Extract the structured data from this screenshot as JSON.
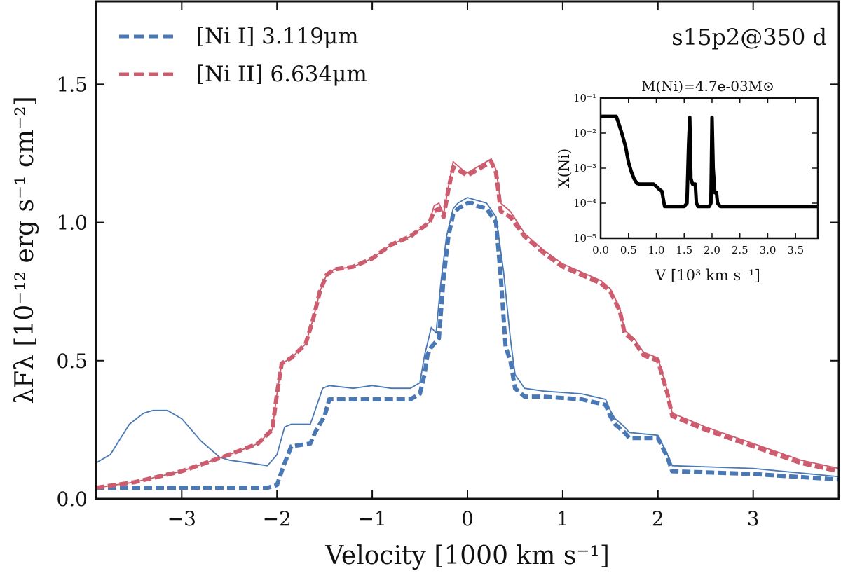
{
  "chart_data": [
    {
      "type": "line",
      "panel_label": "s15p2@350 d",
      "xlabel": "Velocity [1000 km s⁻¹]",
      "ylabel": "λFλ [10⁻¹² erg s⁻¹ cm⁻²]",
      "xlim": [
        -3.9,
        3.9
      ],
      "ylim": [
        0.0,
        1.8
      ],
      "xticks": [
        -3,
        -2,
        -1,
        0,
        1,
        2,
        3
      ],
      "xtick_labels": [
        "−3",
        "−2",
        "−1",
        "0",
        "1",
        "2",
        "3"
      ],
      "yticks": [
        0.0,
        0.5,
        1.0,
        1.5
      ],
      "ytick_labels": [
        "0.0",
        "0.5",
        "1.0",
        "1.5"
      ],
      "legend": [
        {
          "label": "[Ni I] 3.119μm",
          "color": "#4a78b4",
          "style": "dashed"
        },
        {
          "label": "[Ni II] 6.634μm",
          "color": "#cc5c6e",
          "style": "dashed"
        }
      ],
      "series": [
        {
          "name": "[Ni I] 3.119μm (dashed)",
          "color": "#4a78b4",
          "style": "dashed",
          "x": [
            -3.9,
            -2.1,
            -2.0,
            -1.93,
            -1.85,
            -1.65,
            -1.6,
            -1.5,
            -1.45,
            -1.0,
            -0.6,
            -0.5,
            -0.45,
            -0.42,
            -0.38,
            -0.3,
            -0.25,
            -0.2,
            -0.15,
            -0.1,
            -0.05,
            0.0,
            0.05,
            0.1,
            0.2,
            0.3,
            0.35,
            0.4,
            0.45,
            0.5,
            0.6,
            0.8,
            1.2,
            1.45,
            1.5,
            1.55,
            1.65,
            1.7,
            2.0,
            2.1,
            2.15,
            3.0,
            3.9
          ],
          "y": [
            0.04,
            0.04,
            0.05,
            0.12,
            0.19,
            0.2,
            0.24,
            0.3,
            0.36,
            0.36,
            0.36,
            0.38,
            0.45,
            0.52,
            0.55,
            0.58,
            0.8,
            0.95,
            1.03,
            1.05,
            1.06,
            1.07,
            1.07,
            1.06,
            1.05,
            1.0,
            0.8,
            0.55,
            0.5,
            0.4,
            0.37,
            0.37,
            0.36,
            0.34,
            0.3,
            0.27,
            0.24,
            0.22,
            0.22,
            0.15,
            0.1,
            0.09,
            0.07
          ]
        },
        {
          "name": "[Ni I] 3.119μm (solid)",
          "color": "#4a78b4",
          "style": "solid",
          "x": [
            -3.9,
            -3.75,
            -3.55,
            -3.4,
            -3.3,
            -3.15,
            -3.0,
            -2.8,
            -2.6,
            -2.5,
            -2.3,
            -2.1,
            -2.0,
            -1.92,
            -1.85,
            -1.65,
            -1.6,
            -1.52,
            -1.45,
            -1.2,
            -1.0,
            -0.8,
            -0.6,
            -0.5,
            -0.45,
            -0.38,
            -0.33,
            -0.28,
            -0.22,
            -0.15,
            -0.1,
            -0.05,
            0.0,
            0.1,
            0.2,
            0.3,
            0.38,
            0.45,
            0.5,
            0.6,
            0.8,
            1.2,
            1.45,
            1.5,
            1.55,
            1.65,
            1.7,
            2.0,
            2.1,
            2.15,
            3.0,
            3.9
          ],
          "y": [
            0.13,
            0.16,
            0.27,
            0.31,
            0.32,
            0.32,
            0.29,
            0.21,
            0.15,
            0.14,
            0.13,
            0.12,
            0.16,
            0.26,
            0.27,
            0.27,
            0.32,
            0.4,
            0.41,
            0.4,
            0.41,
            0.4,
            0.4,
            0.42,
            0.52,
            0.62,
            0.6,
            0.78,
            0.95,
            1.05,
            1.07,
            1.08,
            1.09,
            1.08,
            1.07,
            1.02,
            0.82,
            0.58,
            0.45,
            0.4,
            0.39,
            0.38,
            0.36,
            0.32,
            0.29,
            0.26,
            0.24,
            0.23,
            0.16,
            0.12,
            0.11,
            0.08
          ]
        },
        {
          "name": "[Ni II] 6.634μm (dashed)",
          "color": "#cc5c6e",
          "style": "dashed",
          "x": [
            -3.9,
            -3.5,
            -3.0,
            -2.5,
            -2.2,
            -2.05,
            -2.0,
            -1.95,
            -1.85,
            -1.7,
            -1.62,
            -1.55,
            -1.48,
            -1.4,
            -1.2,
            -1.0,
            -0.8,
            -0.6,
            -0.4,
            -0.35,
            -0.3,
            -0.25,
            -0.2,
            -0.15,
            -0.05,
            0.0,
            0.05,
            0.15,
            0.25,
            0.3,
            0.35,
            0.45,
            0.6,
            0.8,
            1.0,
            1.2,
            1.4,
            1.5,
            1.6,
            1.65,
            1.75,
            1.85,
            2.0,
            2.1,
            2.15,
            2.5,
            3.0,
            3.5,
            3.9
          ],
          "y": [
            0.04,
            0.06,
            0.1,
            0.16,
            0.2,
            0.25,
            0.38,
            0.49,
            0.51,
            0.56,
            0.65,
            0.75,
            0.81,
            0.83,
            0.84,
            0.87,
            0.92,
            0.95,
            1.0,
            1.04,
            1.05,
            1.02,
            1.12,
            1.2,
            1.18,
            1.17,
            1.18,
            1.2,
            1.22,
            1.18,
            1.04,
            1.02,
            0.95,
            0.89,
            0.84,
            0.81,
            0.78,
            0.75,
            0.68,
            0.6,
            0.57,
            0.52,
            0.5,
            0.38,
            0.3,
            0.25,
            0.19,
            0.13,
            0.1
          ]
        },
        {
          "name": "[Ni II] 6.634μm (solid)",
          "color": "#cc5c6e",
          "style": "solid",
          "x": [
            -3.9,
            -3.5,
            -3.0,
            -2.5,
            -2.2,
            -2.05,
            -2.0,
            -1.95,
            -1.85,
            -1.7,
            -1.62,
            -1.55,
            -1.48,
            -1.4,
            -1.2,
            -1.0,
            -0.8,
            -0.6,
            -0.4,
            -0.35,
            -0.3,
            -0.25,
            -0.2,
            -0.15,
            -0.05,
            0.0,
            0.05,
            0.15,
            0.25,
            0.3,
            0.35,
            0.45,
            0.6,
            0.8,
            1.0,
            1.2,
            1.4,
            1.5,
            1.6,
            1.65,
            1.75,
            1.85,
            2.0,
            2.1,
            2.15,
            2.5,
            3.0,
            3.5,
            3.9
          ],
          "y": [
            0.04,
            0.06,
            0.1,
            0.16,
            0.2,
            0.25,
            0.38,
            0.49,
            0.51,
            0.56,
            0.65,
            0.75,
            0.81,
            0.83,
            0.84,
            0.87,
            0.92,
            0.95,
            1.0,
            1.06,
            1.07,
            1.03,
            1.13,
            1.22,
            1.19,
            1.18,
            1.19,
            1.21,
            1.23,
            1.19,
            1.07,
            1.04,
            0.96,
            0.9,
            0.85,
            0.82,
            0.79,
            0.76,
            0.69,
            0.61,
            0.58,
            0.53,
            0.51,
            0.39,
            0.31,
            0.26,
            0.2,
            0.14,
            0.11
          ]
        }
      ]
    },
    {
      "type": "line",
      "title": "M(Ni)=4.7e-03M⊙",
      "xlabel": "V [10³ km s⁻¹]",
      "ylabel": "X(Ni)",
      "xlim": [
        0.0,
        3.9
      ],
      "ylim": [
        1e-05,
        0.1
      ],
      "yscale": "log",
      "xticks": [
        0.0,
        0.5,
        1.0,
        1.5,
        2.0,
        2.5,
        3.0,
        3.5
      ],
      "xtick_labels": [
        "0.0",
        "0.5",
        "1.0",
        "1.5",
        "2.0",
        "2.5",
        "3.0",
        "3.5"
      ],
      "yticks": [
        1e-05,
        0.0001,
        0.001,
        0.01,
        0.1
      ],
      "ytick_labels": [
        "10⁻⁵",
        "10⁻⁴",
        "10⁻³",
        "10⁻²",
        "10⁻¹"
      ],
      "series": [
        {
          "name": "X(Ni)",
          "color": "#000000",
          "style": "solid",
          "x": [
            0.0,
            0.28,
            0.32,
            0.38,
            0.45,
            0.5,
            0.55,
            0.6,
            0.65,
            0.7,
            0.95,
            1.0,
            1.05,
            1.1,
            1.15,
            1.5,
            1.55,
            1.58,
            1.6,
            1.62,
            1.65,
            1.7,
            1.72,
            1.75,
            1.95,
            1.98,
            2.0,
            2.02,
            2.05,
            2.08,
            2.1,
            2.15,
            3.9
          ],
          "y": [
            0.03,
            0.03,
            0.02,
            0.01,
            0.004,
            0.0015,
            0.0008,
            0.0005,
            0.00037,
            0.00035,
            0.00035,
            0.0003,
            0.00025,
            0.00022,
            8e-05,
            8e-05,
            0.0001,
            0.005,
            0.028,
            0.0005,
            0.00035,
            0.00035,
            0.0001,
            8e-05,
            8e-05,
            0.0001,
            0.028,
            0.001,
            0.0002,
            0.0002,
            0.0001,
            8e-05,
            8e-05
          ]
        }
      ]
    }
  ]
}
